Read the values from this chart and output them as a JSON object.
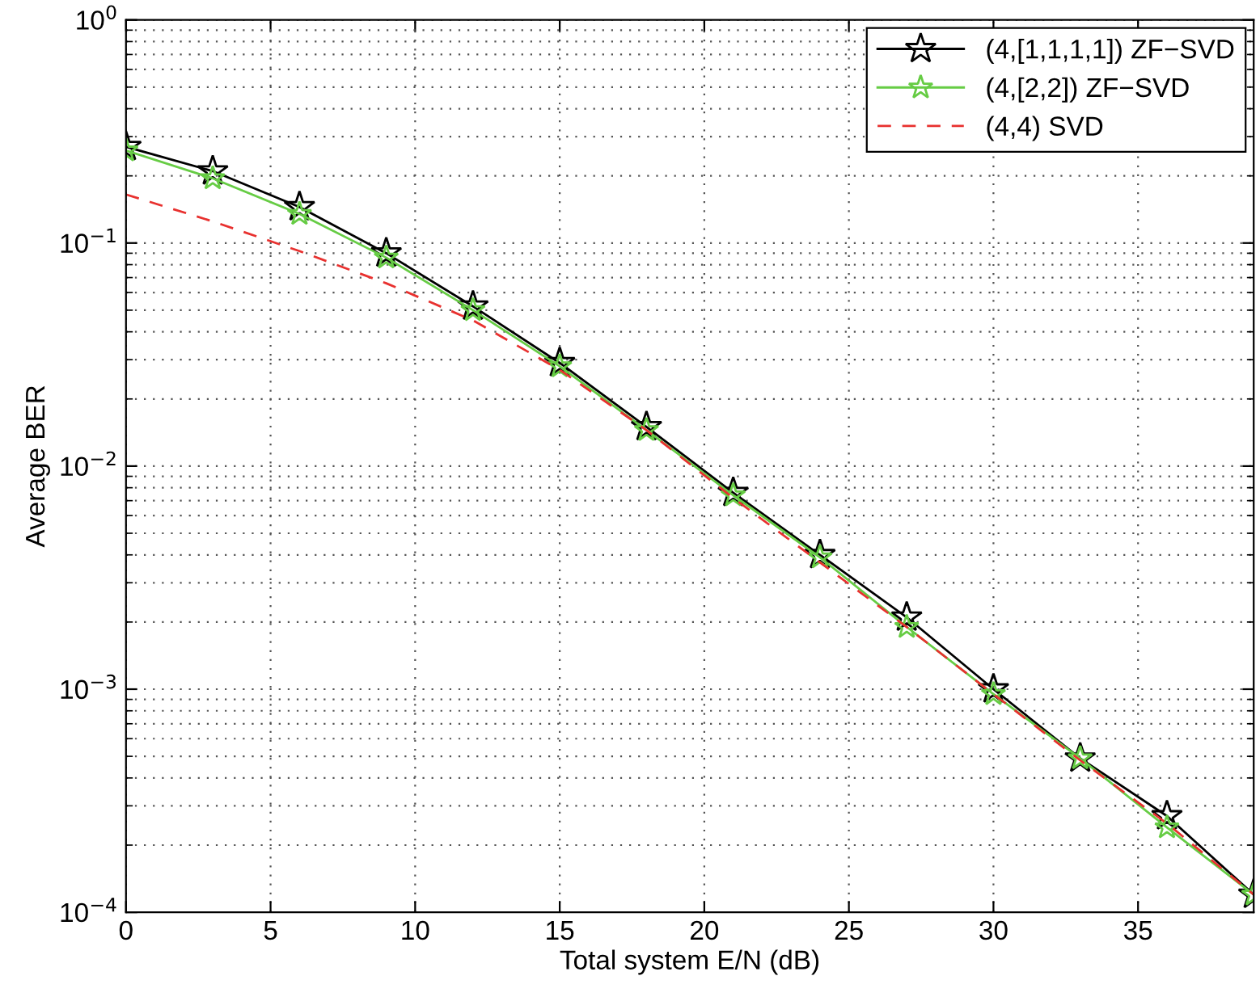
{
  "chart_data": {
    "type": "line",
    "xlabel": "Total system E/N (dB)",
    "ylabel": "Average BER",
    "x": [
      0,
      3,
      6,
      9,
      12,
      15,
      18,
      21,
      24,
      27,
      30,
      33,
      36,
      39
    ],
    "series": [
      {
        "name": "(4,[1,1,1,1]) ZF−SVD",
        "color": "#000000",
        "marker": "star",
        "line_style": "solid",
        "values": [
          0.27,
          0.21,
          0.145,
          0.09,
          0.052,
          0.029,
          0.015,
          0.0076,
          0.004,
          0.0021,
          0.001,
          0.00049,
          0.00027,
          0.00012
        ]
      },
      {
        "name": "(4,[2,2]) ZF−SVD",
        "color": "#66cc44",
        "marker": "star",
        "line_style": "solid",
        "values": [
          0.26,
          0.195,
          0.135,
          0.086,
          0.05,
          0.028,
          0.0145,
          0.0074,
          0.0039,
          0.0019,
          0.00095,
          0.00049,
          0.00024,
          0.00012
        ]
      },
      {
        "name": "(4,4) SVD",
        "color": "#e8312f",
        "marker": "none",
        "line_style": "dashed",
        "values": [
          0.165,
          0.125,
          0.092,
          0.066,
          0.045,
          0.027,
          0.0145,
          0.0072,
          0.0037,
          0.0019,
          0.00095,
          0.00048,
          0.00025,
          0.00012
        ]
      }
    ],
    "log": "y",
    "xlim": [
      0,
      39
    ],
    "ylim": [
      0.0001,
      1
    ],
    "xticks": [
      0,
      5,
      10,
      15,
      20,
      25,
      30,
      35
    ],
    "yticks": [
      {
        "value": 0.0001,
        "label": "10$^{−4}$"
      },
      {
        "value": 0.001,
        "label": "10$^{−3}$"
      },
      {
        "value": 0.01,
        "label": "10$^{−2}$"
      },
      {
        "value": 0.1,
        "label": "10$^{−1}$"
      },
      {
        "value": 1,
        "label": "10$^{0}$"
      }
    ],
    "grid": true,
    "legend": "top right"
  }
}
